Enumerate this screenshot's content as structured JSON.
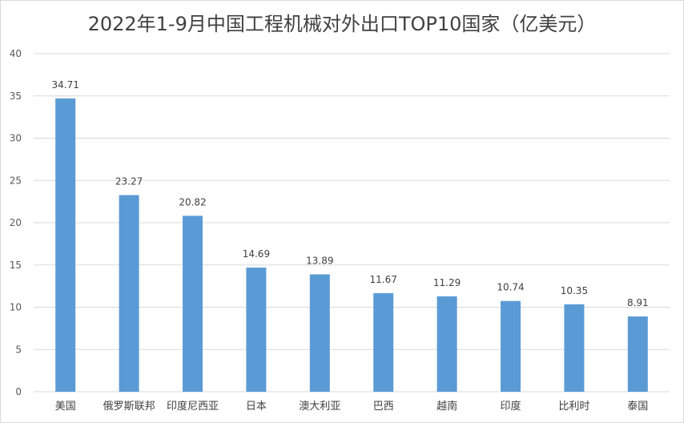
{
  "chart_data": {
    "type": "bar",
    "title": "2022年1-9月中国工程机械对外出口TOP10国家（亿美元）",
    "categories": [
      "美国",
      "俄罗斯联邦",
      "印度尼西亚",
      "日本",
      "澳大利亚",
      "巴西",
      "越南",
      "印度",
      "比利时",
      "泰国"
    ],
    "values": [
      34.71,
      23.27,
      20.82,
      14.69,
      13.89,
      11.67,
      11.29,
      10.74,
      10.35,
      8.91
    ],
    "value_labels": [
      "34.71",
      "23.27",
      "20.82",
      "14.69",
      "13.89",
      "11.67",
      "11.29",
      "10.74",
      "10.35",
      "8.91"
    ],
    "xlabel": "",
    "ylabel": "",
    "ylim": [
      0,
      40
    ],
    "y_ticks": [
      0,
      5,
      10,
      15,
      20,
      25,
      30,
      35,
      40
    ],
    "grid": true,
    "legend": "none",
    "bar_color": "#5b9bd5",
    "grid_color": "#d9d9d9"
  }
}
